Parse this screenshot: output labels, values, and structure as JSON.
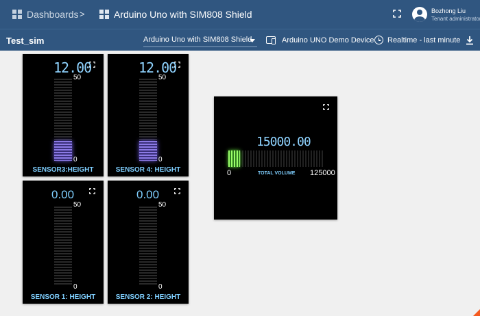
{
  "header": {
    "breadcrumb_root": "Dashboards",
    "breadcrumb_sep": ">",
    "breadcrumb_current": "Arduino Uno with SIM808 Shield",
    "user_name": "Bozhong Liu",
    "user_role": "Tenant administrator"
  },
  "toolbar": {
    "dashboard_title": "Test_sim",
    "state_value": "Arduino Uno with SIM808 Shield",
    "entity_label": "Arduino UNO Demo Device",
    "timewindow_label": "Realtime - last minute"
  },
  "widgets": [
    {
      "title": "SENSOR3:HEIGHT",
      "value": "12.00",
      "value_num": 12,
      "max_label": "50",
      "min_label": "0",
      "max": 50,
      "min": 0
    },
    {
      "title": "SENSOR 4: HEIGHT",
      "value": "12.00",
      "value_num": 12,
      "max_label": "50",
      "min_label": "0",
      "max": 50,
      "min": 0
    },
    {
      "title": "SENSOR 1: HEIGHT",
      "value": "0.00",
      "value_num": 0,
      "max_label": "50",
      "min_label": "0",
      "max": 50,
      "min": 0
    },
    {
      "title": "SENSOR 2: HEIGHT",
      "value": "0.00",
      "value_num": 0,
      "max_label": "50",
      "min_label": "0",
      "max": 50,
      "min": 0
    }
  ],
  "volume": {
    "title": "TOTAL VOLUME",
    "value": "15000.00",
    "value_num": 15000,
    "min_label": "0",
    "max_label": "125000",
    "min": 0,
    "max": 125000
  },
  "icons": {
    "fullscreen": "fullscreen-icon",
    "dashboards": "dashboard-grid-icon",
    "download": "download-icon",
    "clock": "clock-icon"
  },
  "colors": {
    "header_bg": "#305680",
    "value_blue": "#8fd3ff",
    "bar_purple": "#8c7ae6",
    "bar_green": "#9aff6a"
  }
}
